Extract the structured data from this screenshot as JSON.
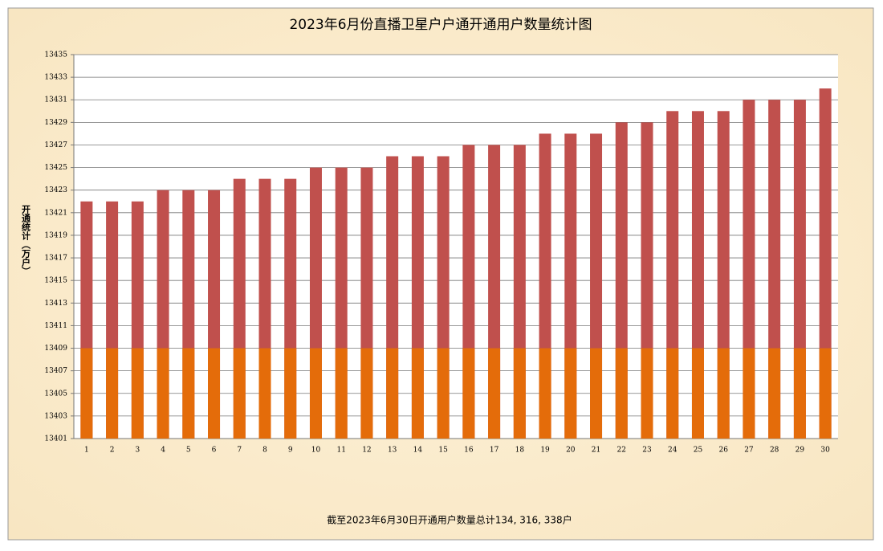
{
  "chart_data": {
    "type": "bar",
    "overlay": true,
    "title": "2023年6月份直播卫星户户通开通用户数量统计图",
    "y_label": "开通统计（万户）",
    "footer": "截至2023年6月30日开通用户数量总计134, 316, 338户",
    "categories": [
      "1",
      "2",
      "3",
      "4",
      "5",
      "6",
      "7",
      "8",
      "9",
      "10",
      "11",
      "12",
      "13",
      "14",
      "15",
      "16",
      "17",
      "18",
      "19",
      "20",
      "21",
      "22",
      "23",
      "24",
      "25",
      "26",
      "27",
      "28",
      "29",
      "30"
    ],
    "series": [
      {
        "color": "#c0504d",
        "values": [
          13422,
          13422,
          13422,
          13423,
          13423,
          13423,
          13424,
          13424,
          13424,
          13425,
          13425,
          13425,
          13426,
          13426,
          13426,
          13427,
          13427,
          13427,
          13428,
          13428,
          13428,
          13429,
          13429,
          13430,
          13430,
          13430,
          13431,
          13431,
          13431,
          13432
        ]
      },
      {
        "color": "#e46c0a",
        "values": [
          13409,
          13409,
          13409,
          13409,
          13409,
          13409,
          13409,
          13409,
          13409,
          13409,
          13409,
          13409,
          13409,
          13409,
          13409,
          13409,
          13409,
          13409,
          13409,
          13409,
          13409,
          13409,
          13409,
          13409,
          13409,
          13409,
          13409,
          13409,
          13409,
          13409
        ]
      }
    ],
    "ylim": [
      13401,
      13435
    ],
    "yticks": [
      13401,
      13403,
      13405,
      13407,
      13409,
      13411,
      13413,
      13415,
      13417,
      13419,
      13421,
      13423,
      13425,
      13427,
      13429,
      13431,
      13433,
      13435
    ],
    "grid": true
  }
}
